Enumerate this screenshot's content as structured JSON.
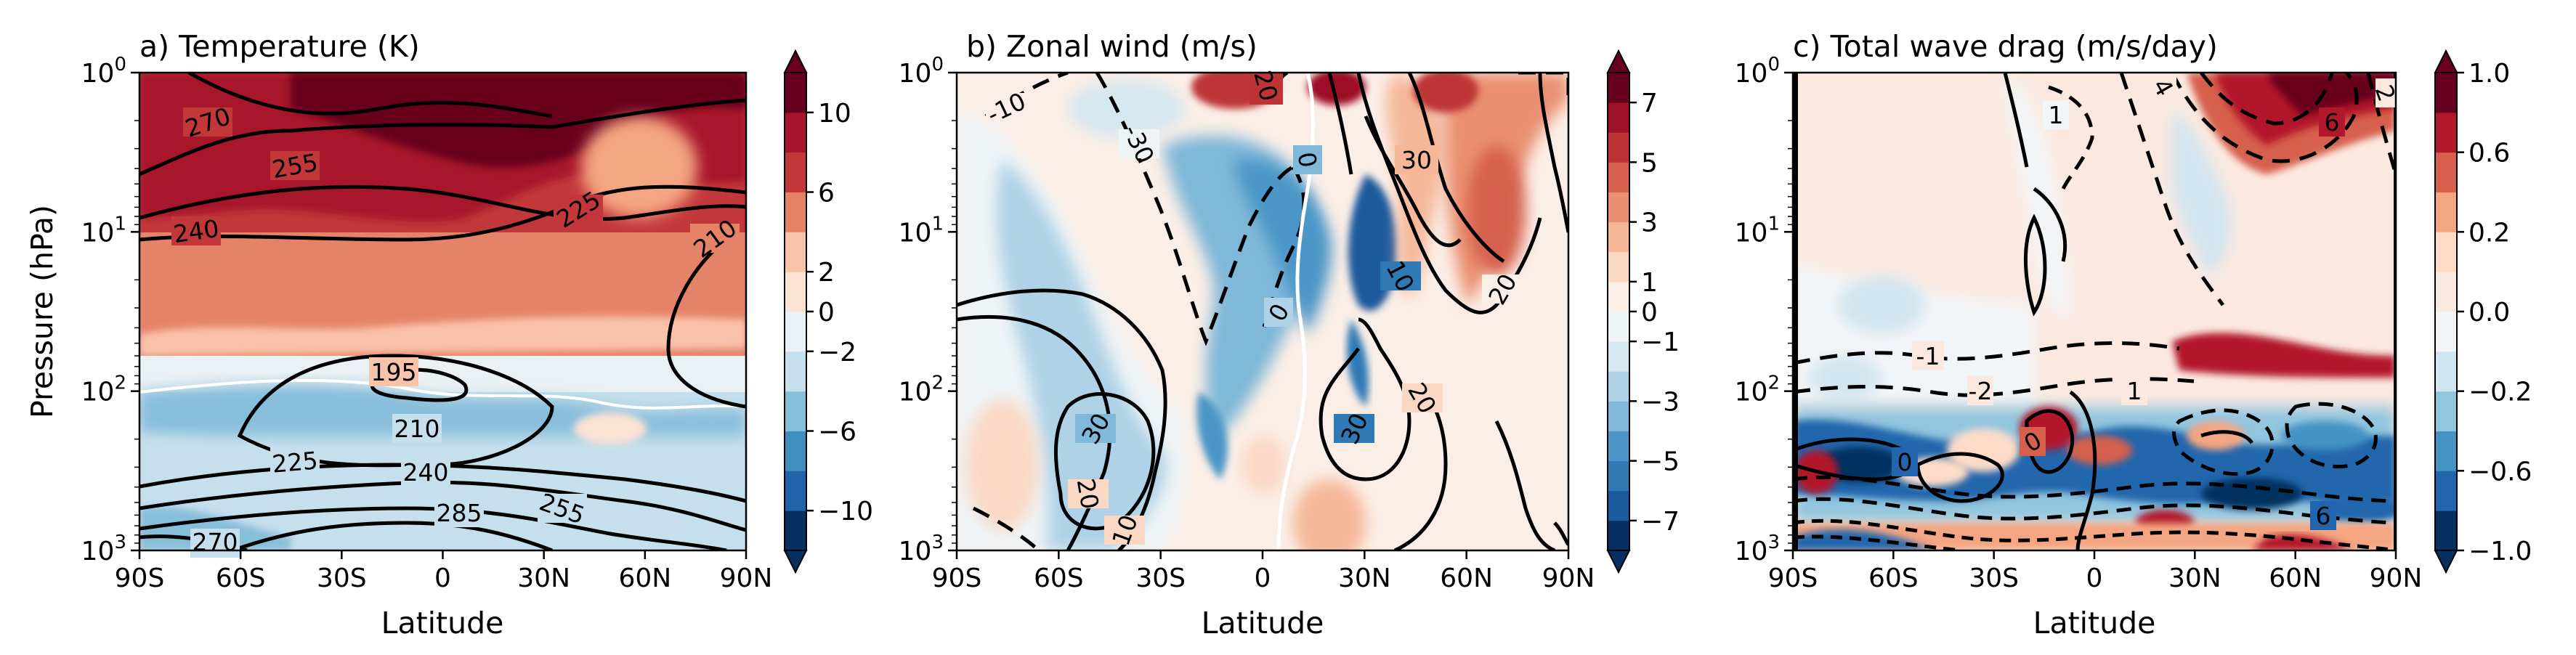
{
  "figure": {
    "shared_ylabel": "Pressure (hPa)"
  },
  "chart_data": [
    {
      "type": "heatmap",
      "panel": "a",
      "title": "a) Temperature (K)",
      "xlabel": "Latitude",
      "ylabel": "Pressure (hPa)",
      "x_ticks": [
        "90S",
        "60S",
        "30S",
        "0",
        "30N",
        "60N",
        "90N"
      ],
      "y_ticks": [
        {
          "base": "10",
          "exp": "0"
        },
        {
          "base": "10",
          "exp": "1"
        },
        {
          "base": "10",
          "exp": "2"
        },
        {
          "base": "10",
          "exp": "3"
        }
      ],
      "xlim": [
        -90,
        90
      ],
      "ylim_hpa": [
        1000,
        1
      ],
      "y_scale": "log",
      "fill_field": "temperature anomaly (K)",
      "colorbar": {
        "levels": [
          -12,
          -10,
          -8,
          -6,
          -4,
          -2,
          0,
          2,
          4,
          6,
          8,
          10,
          12
        ],
        "tick_labels": [
          "−10",
          "−6",
          "−2",
          "0",
          "2",
          "6",
          "10"
        ],
        "tick_values": [
          -10,
          -6,
          -2,
          0,
          2,
          6,
          10
        ],
        "colors": [
          "#053061",
          "#1f63a8",
          "#3f8ec0",
          "#87beda",
          "#c5dfec",
          "#eaf1f4",
          "#fbe3d4",
          "#f9c3a9",
          "#e58368",
          "#c2383a",
          "#a7142c",
          "#67001f"
        ],
        "extend": "both"
      },
      "contour_labels": [
        "270",
        "255",
        "240",
        "225",
        "210",
        "195",
        "210",
        "225",
        "240",
        "255",
        "270",
        "285"
      ],
      "contour_values_K": [
        195,
        210,
        225,
        240,
        255,
        270,
        285
      ]
    },
    {
      "type": "heatmap",
      "panel": "b",
      "title": "b) Zonal wind (m/s)",
      "xlabel": "Latitude",
      "x_ticks": [
        "90S",
        "60S",
        "30S",
        "0",
        "30N",
        "60N",
        "90N"
      ],
      "y_ticks": [
        {
          "base": "10",
          "exp": "0"
        },
        {
          "base": "10",
          "exp": "1"
        },
        {
          "base": "10",
          "exp": "2"
        },
        {
          "base": "10",
          "exp": "3"
        }
      ],
      "xlim": [
        -90,
        90
      ],
      "ylim_hpa": [
        1000,
        1
      ],
      "y_scale": "log",
      "fill_field": "zonal wind anomaly (m/s)",
      "colorbar": {
        "levels": [
          -8,
          -7,
          -6,
          -5,
          -4,
          -3,
          -2,
          -1,
          0,
          1,
          2,
          3,
          4,
          5,
          6,
          7,
          8
        ],
        "tick_labels": [
          "−7",
          "−5",
          "−3",
          "−1",
          "0",
          "1",
          "3",
          "5",
          "7"
        ],
        "tick_values": [
          -7,
          -5,
          -3,
          -1,
          0,
          1,
          3,
          5,
          7
        ],
        "colors": [
          "#053061",
          "#1b5a9c",
          "#2f79b5",
          "#4b96c7",
          "#7fb8d8",
          "#afd2e6",
          "#d5e7f1",
          "#eef3f6",
          "#fbeee6",
          "#fbd8c4",
          "#f6b799",
          "#ea9072",
          "#d6604d",
          "#bd3434",
          "#9d1028",
          "#67001f"
        ],
        "extend": "both"
      },
      "contour_labels": [
        "-10",
        "-30",
        "20",
        "0",
        "30",
        "20",
        "10",
        "0",
        "30",
        "30",
        "20",
        "20",
        "10"
      ],
      "contour_values_ms": [
        -30,
        -10,
        0,
        10,
        20,
        30
      ]
    },
    {
      "type": "heatmap",
      "panel": "c",
      "title": "c) Total wave drag (m/s/day)",
      "xlabel": "Latitude",
      "x_ticks": [
        "90S",
        "60S",
        "30S",
        "0",
        "30N",
        "60N",
        "90N"
      ],
      "y_ticks": [
        {
          "base": "10",
          "exp": "0"
        },
        {
          "base": "10",
          "exp": "1"
        },
        {
          "base": "10",
          "exp": "2"
        },
        {
          "base": "10",
          "exp": "3"
        }
      ],
      "xlim": [
        -90,
        90
      ],
      "ylim_hpa": [
        1000,
        1
      ],
      "y_scale": "log",
      "fill_field": "total wave drag anomaly (m/s/day)",
      "colorbar": {
        "levels": [
          -1.0,
          -0.8,
          -0.6,
          -0.4,
          -0.2,
          -0.1,
          0.0,
          0.1,
          0.2,
          0.4,
          0.6,
          0.8,
          1.0
        ],
        "tick_labels": [
          "−1.0",
          "−0.6",
          "−0.2",
          "0.0",
          "0.2",
          "0.6",
          "1.0"
        ],
        "tick_values": [
          -1.0,
          -0.6,
          -0.2,
          0.0,
          0.2,
          0.6,
          1.0
        ],
        "colors": [
          "#053061",
          "#2166ac",
          "#4393c3",
          "#92c5de",
          "#d1e5f0",
          "#f2f5f8",
          "#fbe9e0",
          "#fddbc7",
          "#f4a582",
          "#d6604d",
          "#b2182b",
          "#67001f"
        ],
        "extend": "both"
      },
      "contour_labels": [
        "1",
        "4",
        "6",
        "2",
        "-1",
        "-2",
        "1",
        "0",
        "0",
        "6"
      ],
      "contour_values": [
        -6,
        -4,
        -2,
        -1,
        0,
        1,
        2,
        4,
        6
      ]
    }
  ]
}
